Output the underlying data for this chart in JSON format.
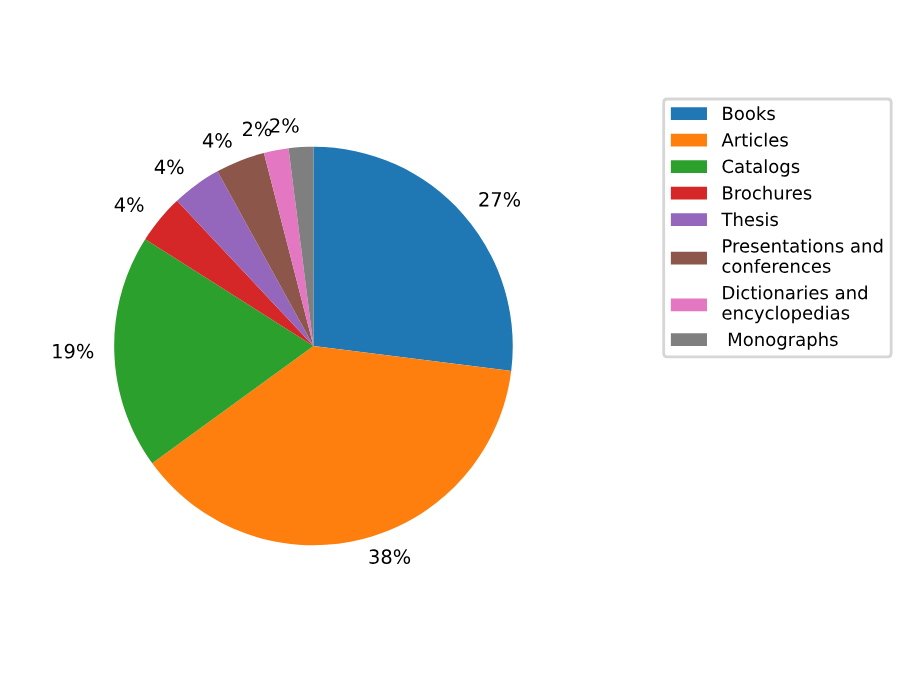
{
  "chart_data": {
    "type": "pie",
    "categories": [
      "Books",
      "Articles",
      "Catalogs",
      "Brochures",
      "Thesis",
      "Presentations and\nconferences",
      "Dictionaries and\nencyclopedias",
      " Monographs"
    ],
    "values": [
      27,
      38,
      19,
      4,
      4,
      4,
      2,
      2
    ],
    "colors": [
      "#1f77b4",
      "#ff7f0e",
      "#2ca02c",
      "#d62728",
      "#9467bd",
      "#8c564b",
      "#e377c2",
      "#7f7f7f"
    ],
    "value_labels": [
      "27%",
      "38%",
      "19%",
      "4%",
      "4%",
      "4%",
      "2%",
      "2%"
    ],
    "legend": "top right"
  }
}
